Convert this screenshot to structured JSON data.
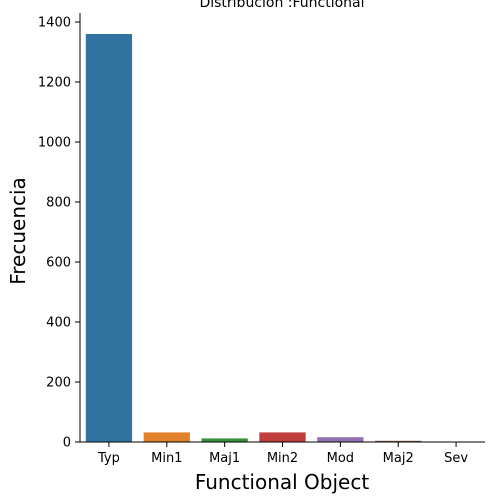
{
  "chart_data": {
    "type": "bar",
    "title": "Distribución :Functional",
    "xlabel": "Functional Object",
    "ylabel": "Frecuencia",
    "categories": [
      "Typ",
      "Min1",
      "Maj1",
      "Min2",
      "Mod",
      "Maj2",
      "Sev"
    ],
    "values": [
      1360,
      32,
      12,
      32,
      16,
      4,
      1
    ],
    "colors": [
      "#3274a1",
      "#e1812c",
      "#3a923a",
      "#c03d3e",
      "#9372b2",
      "#845b53",
      "#d684bd"
    ],
    "ylim": [
      0,
      1430
    ],
    "yticks": [
      0,
      200,
      400,
      600,
      800,
      1000,
      1200,
      1400
    ],
    "grid": false,
    "legend": "none"
  }
}
